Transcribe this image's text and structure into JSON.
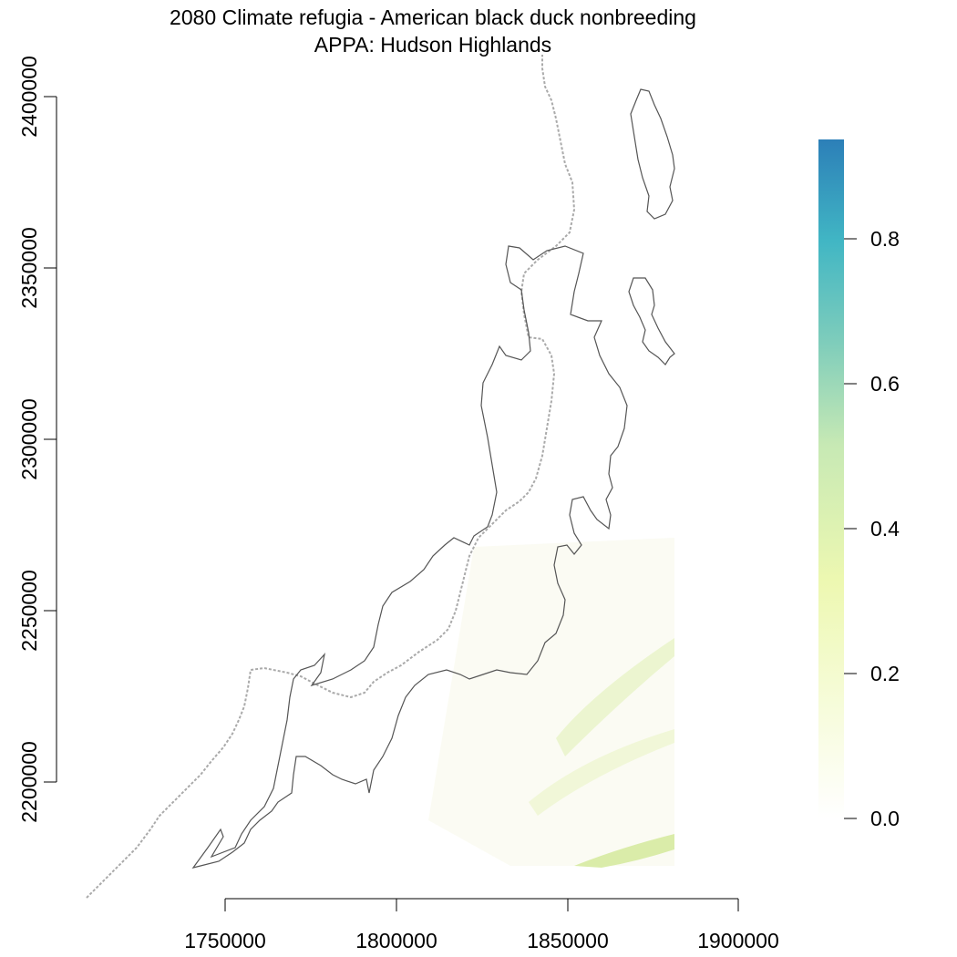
{
  "title": {
    "line1": "2080 Climate refugia - American black duck nonbreeding",
    "line2": "APPA: Hudson Highlands"
  },
  "axes": {
    "x_ticks": [
      "1750000",
      "1800000",
      "1850000",
      "1900000"
    ],
    "y_ticks": [
      "2200000",
      "2250000",
      "2300000",
      "2350000",
      "2400000"
    ]
  },
  "legend": {
    "ticks": [
      "0.0",
      "0.2",
      "0.4",
      "0.6",
      "0.8"
    ],
    "colors": [
      "#ffffff",
      "#edf8b1",
      "#c7e9b4",
      "#7fcdbb",
      "#41b6c4",
      "#2c7fb8"
    ]
  },
  "map_colors": {
    "boundary": "#555555",
    "state_line": "#aaaaaa",
    "low_value_fill": "#eef4d6",
    "mid_value_fill": "#dbeea8"
  }
}
